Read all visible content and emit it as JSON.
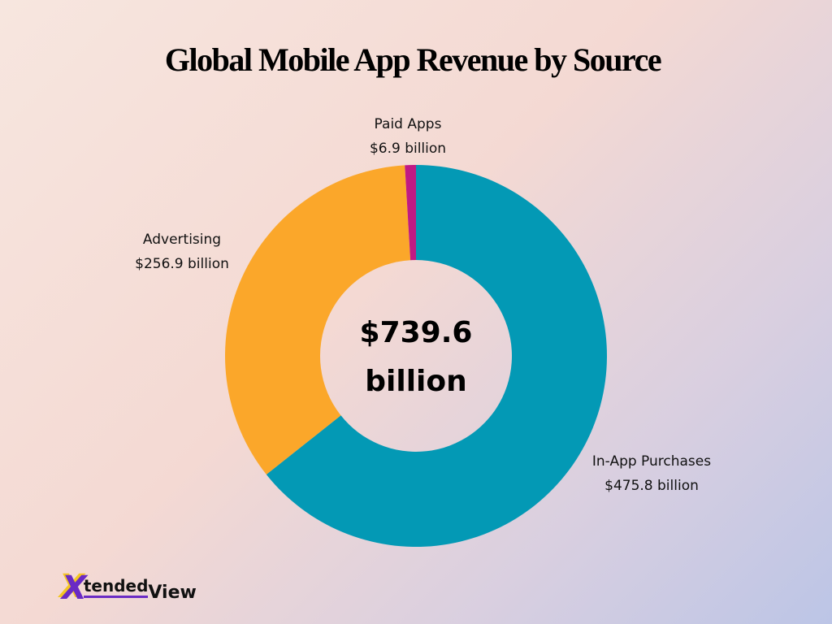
{
  "chart_data": {
    "type": "donut",
    "title": "Global Mobile App Revenue by Source",
    "categories": [
      "In-App Purchases",
      "Advertising",
      "Paid Apps"
    ],
    "values": [
      475.8,
      256.9,
      6.9
    ],
    "value_labels": [
      "$475.8 billion",
      "$256.9 billion",
      "$6.9 billion"
    ],
    "colors": [
      "#0399b5",
      "#fba72a",
      "#c01a84"
    ],
    "center_label": "$739.6 billion"
  },
  "brand": [
    "X",
    "tended",
    "View"
  ]
}
